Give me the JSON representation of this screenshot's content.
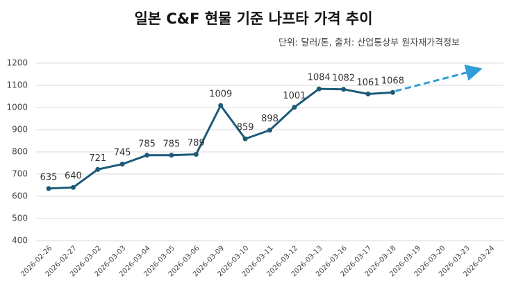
{
  "chart_data": {
    "type": "line",
    "title": "일본 C&F 현물 기준 나프타 가격 추이",
    "subtitle": "단위: 달러/톤, 출처: 산업통상부 원자재가격정보",
    "categories": [
      "2026-02-26",
      "2026-02-27",
      "2026-03-02",
      "2026-03-03",
      "2026-03-04",
      "2026-03-05",
      "2026-03-06",
      "2026-03-09",
      "2026-03-10",
      "2026-03-11",
      "2026-03-12",
      "2026-03-13",
      "2026-03-16",
      "2026-03-17",
      "2026-03-18",
      "2026-03-19",
      "2026-03-20",
      "2026-03-23",
      "2026-03-24"
    ],
    "values": [
      635,
      640,
      721,
      745,
      785,
      785,
      789,
      1009,
      859,
      898,
      1001,
      1084,
      1082,
      1061,
      1068,
      null,
      null,
      null,
      null
    ],
    "color": "#1d5a78",
    "trend_color": "#2f9ed6",
    "ylim": [
      400,
      1200
    ],
    "yticks": [
      400,
      500,
      600,
      700,
      800,
      900,
      1000,
      1100,
      1200
    ],
    "grid": true
  }
}
